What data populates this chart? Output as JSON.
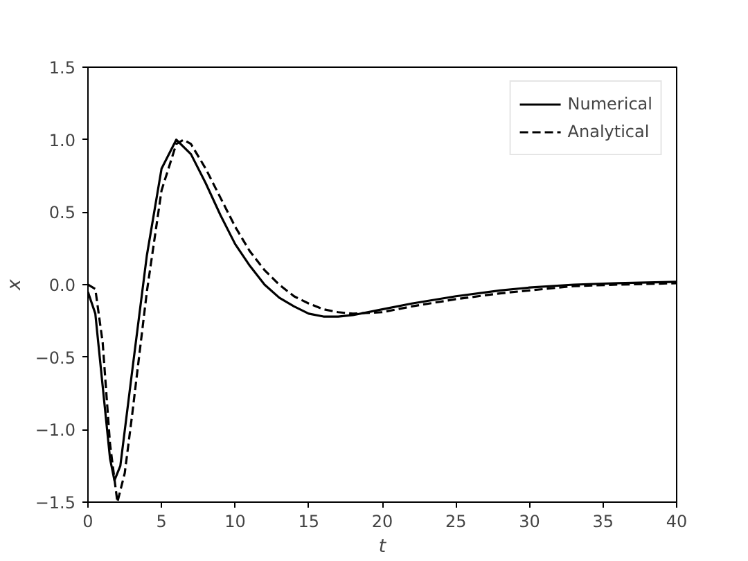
{
  "chart_data": {
    "type": "line",
    "xlabel": "t",
    "ylabel": "x",
    "xlim": [
      0,
      40
    ],
    "ylim": [
      -1.5,
      1.5
    ],
    "xticks": [
      0,
      5,
      10,
      15,
      20,
      25,
      30,
      35,
      40
    ],
    "yticks": [
      {
        "value": -1.5,
        "label": "−1.5"
      },
      {
        "value": -1.0,
        "label": "−1.0"
      },
      {
        "value": -0.5,
        "label": "−0.5"
      },
      {
        "value": 0,
        "label": "0.0"
      },
      {
        "value": 0.5,
        "label": "0.5"
      },
      {
        "value": 1.0,
        "label": "1.0"
      },
      {
        "value": 1.5,
        "label": "1.5"
      }
    ],
    "grid": false,
    "legend": "top right",
    "marker": "none",
    "series": [
      {
        "name": "Numerical",
        "color": "#000000",
        "line_style": "solid",
        "x": [
          0,
          0.5,
          1,
          1.5,
          1.8,
          2.2,
          3,
          4,
          5,
          6,
          7,
          8,
          9,
          10,
          11,
          12,
          13,
          14,
          15,
          16,
          17,
          18,
          20,
          22,
          25,
          28,
          30,
          33,
          36,
          40
        ],
        "values": [
          -0.05,
          -0.2,
          -0.7,
          -1.2,
          -1.35,
          -1.25,
          -0.6,
          0.2,
          0.8,
          1.0,
          0.9,
          0.7,
          0.48,
          0.28,
          0.13,
          0.0,
          -0.09,
          -0.15,
          -0.2,
          -0.22,
          -0.22,
          -0.21,
          -0.17,
          -0.13,
          -0.08,
          -0.04,
          -0.02,
          0.0,
          0.01,
          0.02
        ]
      },
      {
        "name": "Analytical",
        "color": "#000000",
        "line_style": "dashed",
        "x": [
          0,
          0.5,
          1,
          1.5,
          2.0,
          2.5,
          3,
          4,
          5,
          6,
          6.5,
          7,
          8,
          9,
          10,
          11,
          12,
          13,
          14,
          15,
          16,
          17,
          18,
          20,
          22,
          25,
          28,
          30,
          33,
          36,
          40
        ],
        "values": [
          0.0,
          -0.03,
          -0.4,
          -1.1,
          -1.5,
          -1.3,
          -0.9,
          -0.05,
          0.65,
          0.97,
          1.0,
          0.97,
          0.8,
          0.6,
          0.4,
          0.23,
          0.1,
          0.0,
          -0.08,
          -0.13,
          -0.17,
          -0.19,
          -0.2,
          -0.19,
          -0.15,
          -0.1,
          -0.06,
          -0.04,
          -0.01,
          0.0,
          0.01
        ]
      }
    ]
  }
}
